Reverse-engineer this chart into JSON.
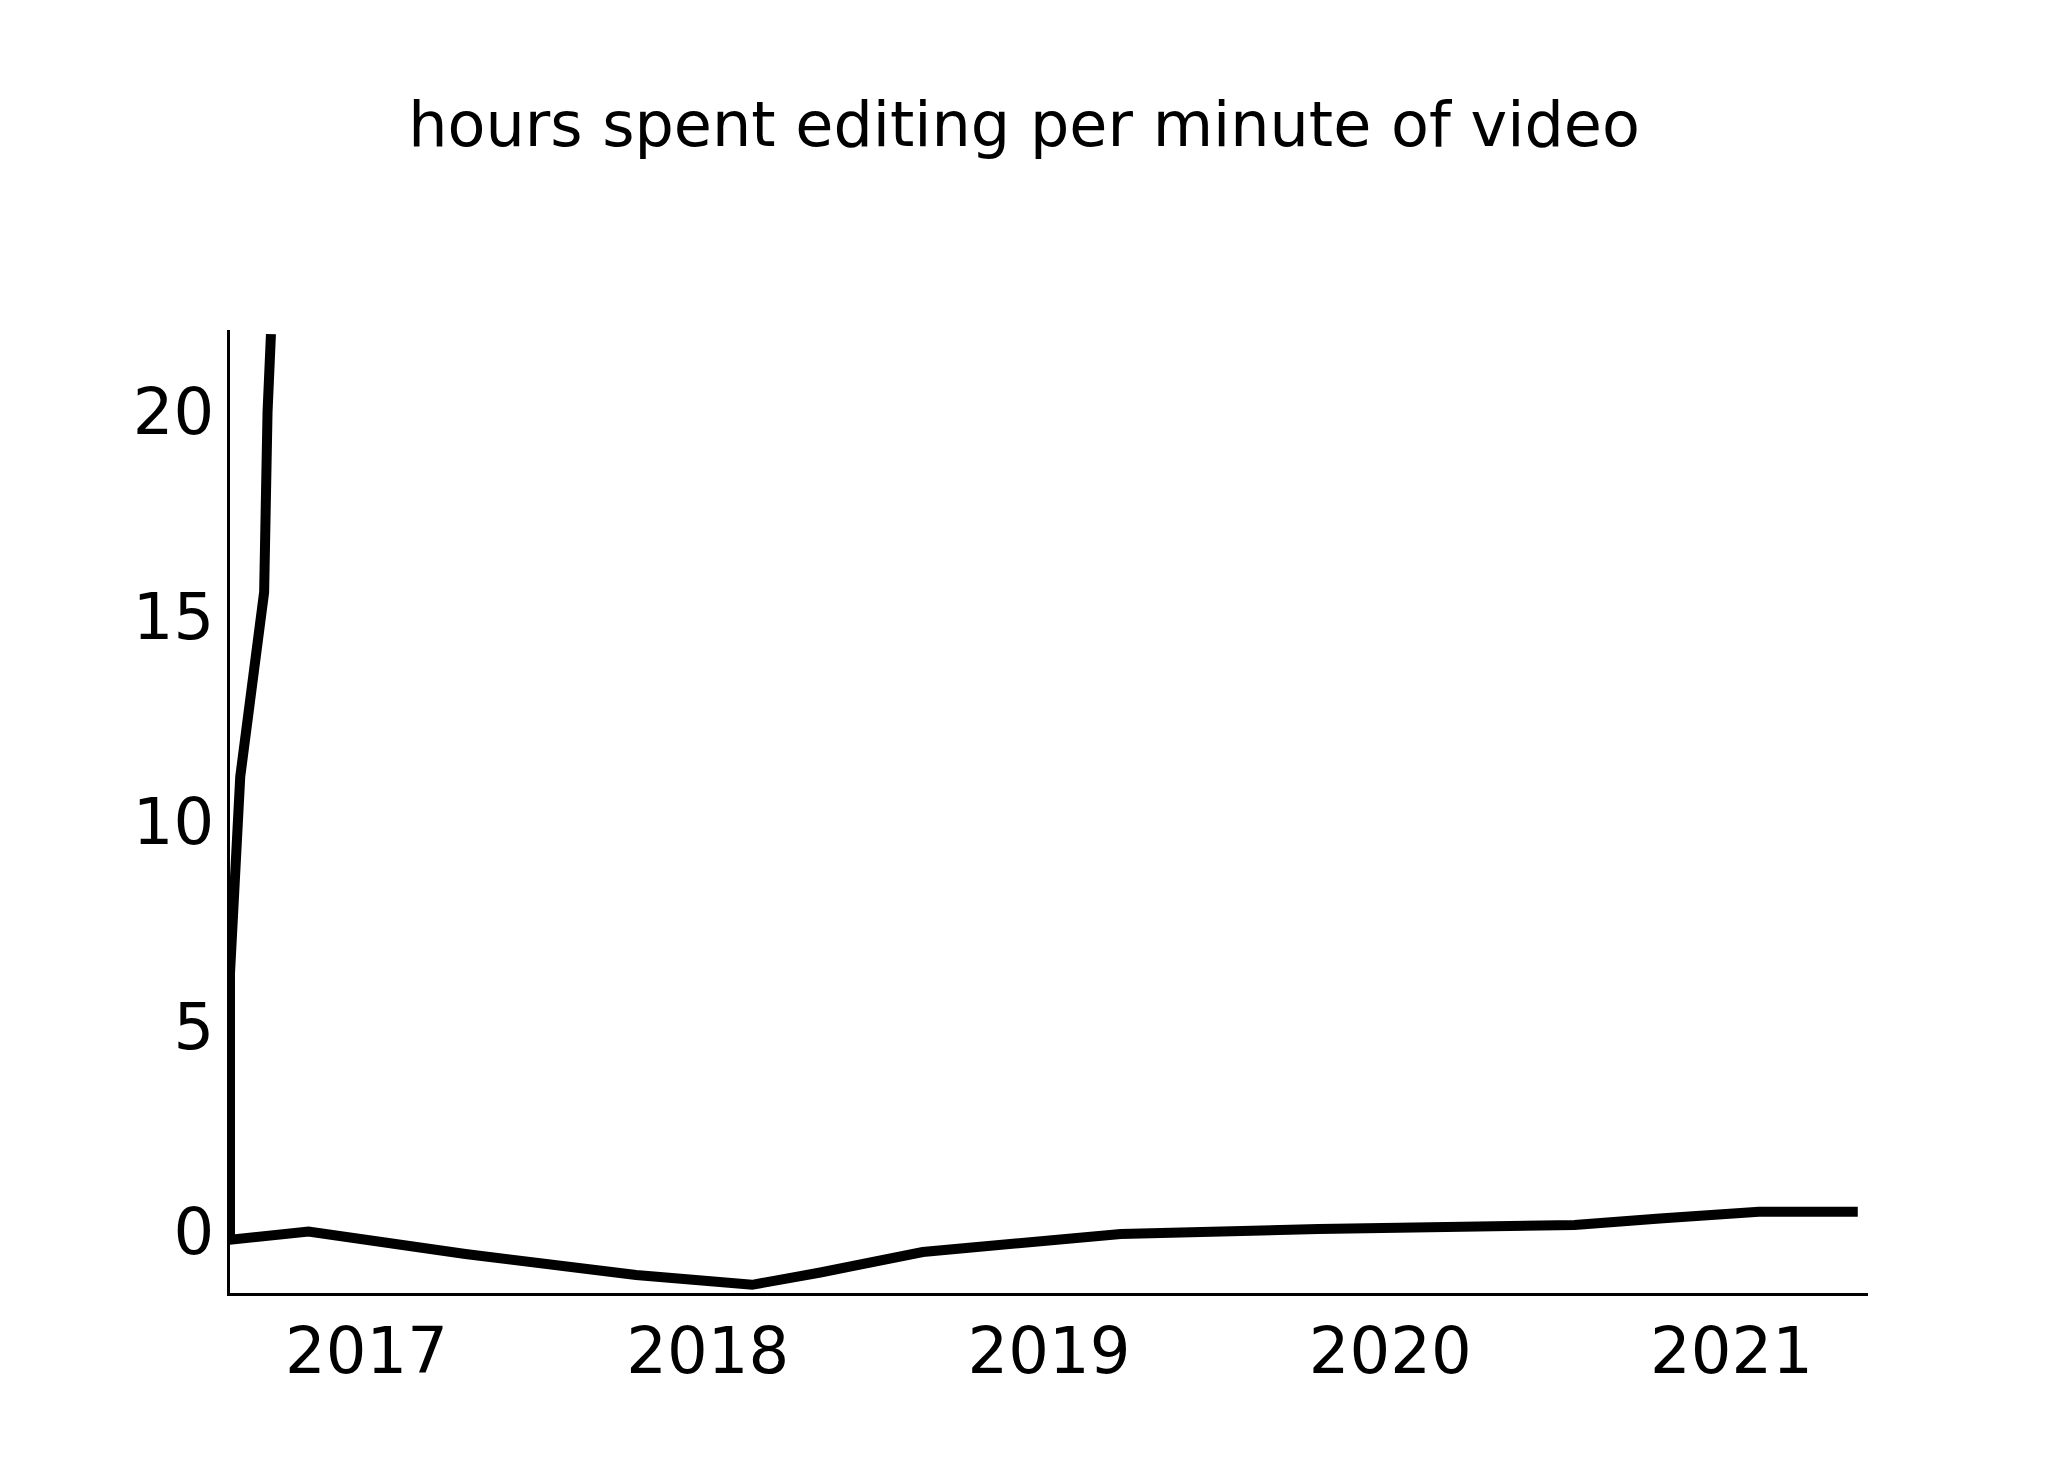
{
  "chart_data": {
    "type": "line",
    "title": "hours spent editing per minute of video",
    "x": [
      2016.72,
      2016.71,
      2016.7,
      2016.63,
      2016.6,
      2016.6,
      2016.83,
      2017.29,
      2017.79,
      2018.13,
      2018.33,
      2018.63,
      2019.21,
      2019.79,
      2020.54,
      2020.79,
      2021.08,
      2021.37
    ],
    "series": [
      {
        "color": "#000000",
        "values": [
          21.9,
          20.0,
          15.6,
          11.1,
          6.3,
          -0.2,
          0.0,
          -0.55,
          -1.06,
          -1.3,
          -1.0,
          -0.5,
          -0.06,
          0.06,
          0.16,
          0.32,
          0.48,
          0.48
        ]
      }
    ],
    "xlim": [
      2016.6,
      2021.4
    ],
    "ylim": [
      -1.5,
      22
    ],
    "xticks": [
      2017,
      2018,
      2019,
      2020,
      2021
    ],
    "yticks": [
      0,
      5,
      10,
      15,
      20
    ],
    "grid": false,
    "legend": false,
    "marker": "none",
    "line_style": "solid"
  }
}
